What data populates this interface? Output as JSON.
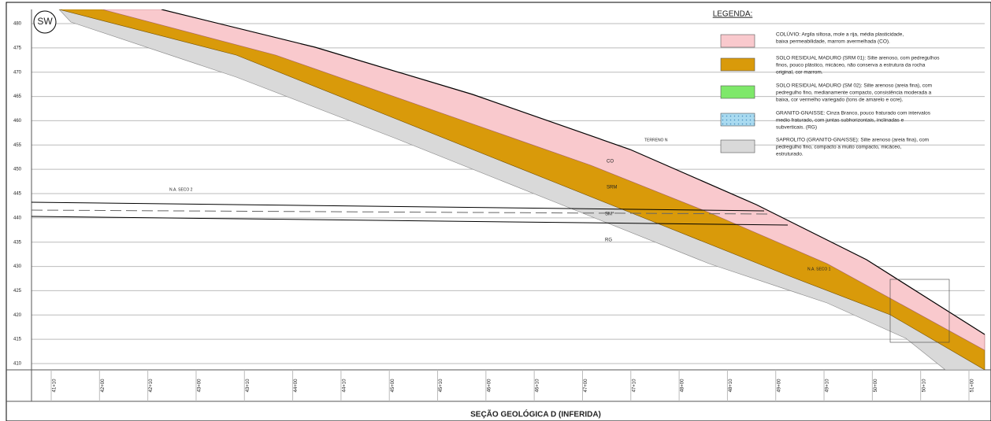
{
  "section": {
    "orientation": "SW",
    "elevations": [
      480,
      475,
      470,
      465,
      460,
      455,
      450,
      445,
      440,
      435,
      430,
      425,
      420,
      415,
      410
    ],
    "stations": [
      "41+10",
      "42+00",
      "42+10",
      "43+00",
      "43+10",
      "44+00",
      "44+10",
      "45+00",
      "45+10",
      "46+00",
      "46+10",
      "47+00",
      "47+10",
      "48+00",
      "48+10",
      "49+00",
      "49+10",
      "50+00",
      "50+10",
      "51+00"
    ],
    "layer_labels": [
      "CO",
      "SRM",
      "SM*",
      "RG"
    ],
    "annotations": [
      "TERRENO N",
      "N.A. SECO 2",
      "N.A. SECO 1"
    ],
    "title": "SEÇÃO GEOLÓGICA D (INFERIDA)"
  },
  "legend": {
    "title": "LEGENDA:",
    "items": [
      {
        "lines": [
          "COLÚVIO: Argila siltosa, mole a rija, média plasticidade,",
          "baixa permeabilidade, marrom avermelhada (CO)."
        ]
      },
      {
        "lines": [
          "SOLO RESIDUAL MADURO (SRM 01): Silte arenoso, com pedregulhos",
          "finos, pouco plástico, micáceo, não conserva a estrutura da rocha",
          "original, cor marrom."
        ]
      },
      {
        "lines": [
          "SOLO RESIDUAL MADURO (SM 02): Silte arenoso (areia fina), com",
          "pedregulho fino, medianamente compacto, consistência moderada a",
          "baixa, cor vermelho variegado (tons de amarelo e ocre)."
        ]
      },
      {
        "lines": [
          "GRANITO-GNAISSE: Cinza Branco, pouco fraturado com intervalos",
          "medio fraturado, com juntas subhorizontais, inclinadas e",
          "subverticais. (RG)"
        ]
      },
      {
        "lines": [
          "SAPROLITO (GRANITO-GNAISSE): Silte arenoso (areia fina), com",
          "pedregulho fino, compacto a muito compacto, micáceo,",
          "estruturado."
        ]
      }
    ]
  }
}
